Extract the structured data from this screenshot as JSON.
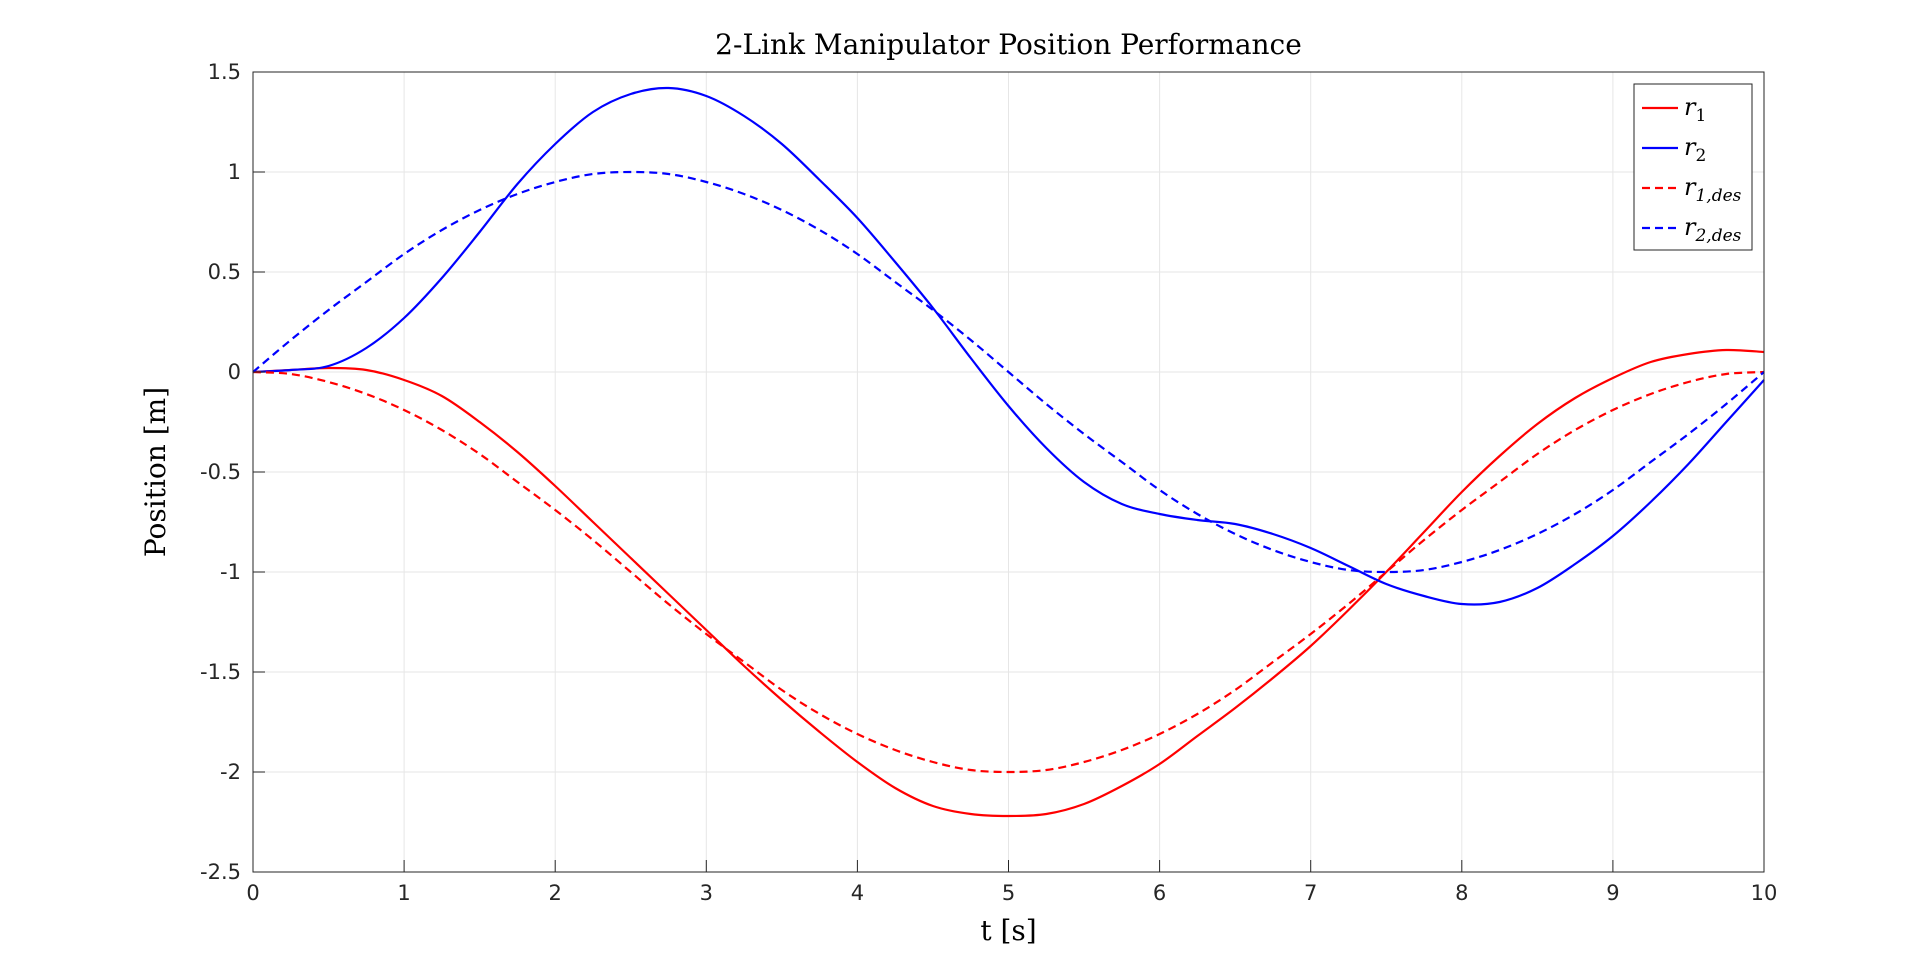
{
  "chart_data": {
    "type": "line",
    "title": "2-Link Manipulator Position Performance",
    "xlabel": "t [s]",
    "ylabel": "Position [m]",
    "xlim": [
      0,
      10
    ],
    "ylim": [
      -2.5,
      1.5
    ],
    "xticks": [
      0,
      1,
      2,
      3,
      4,
      5,
      6,
      7,
      8,
      9,
      10
    ],
    "yticks": [
      -2.5,
      -2,
      -1.5,
      -1,
      -0.5,
      0,
      0.5,
      1,
      1.5
    ],
    "xtick_labels": [
      "0",
      "1",
      "2",
      "3",
      "4",
      "5",
      "6",
      "7",
      "8",
      "9",
      "10"
    ],
    "ytick_labels": [
      "-2.5",
      "-2",
      "-1.5",
      "-1",
      "-0.5",
      "0",
      "0.5",
      "1",
      "1.5"
    ],
    "grid": true,
    "legend_position": "top-right",
    "series": [
      {
        "name": "r1",
        "legend_label": "r1",
        "color": "#ff0000",
        "style": "solid",
        "x": [
          0,
          0.25,
          0.5,
          0.75,
          1,
          1.25,
          1.5,
          1.75,
          2,
          2.25,
          2.5,
          2.75,
          3,
          3.25,
          3.5,
          3.75,
          4,
          4.25,
          4.5,
          4.75,
          5,
          5.25,
          5.5,
          5.75,
          6,
          6.25,
          6.5,
          6.75,
          7,
          7.25,
          7.5,
          7.75,
          8,
          8.25,
          8.5,
          8.75,
          9,
          9.25,
          9.5,
          9.75,
          10
        ],
        "y": [
          0,
          0.01,
          0.02,
          0.01,
          -0.04,
          -0.12,
          -0.25,
          -0.4,
          -0.57,
          -0.75,
          -0.93,
          -1.11,
          -1.29,
          -1.47,
          -1.64,
          -1.8,
          -1.95,
          -2.08,
          -2.17,
          -2.21,
          -2.22,
          -2.21,
          -2.16,
          -2.07,
          -1.96,
          -1.82,
          -1.68,
          -1.53,
          -1.37,
          -1.19,
          -1.0,
          -0.8,
          -0.6,
          -0.42,
          -0.26,
          -0.13,
          -0.03,
          0.05,
          0.09,
          0.11,
          0.1
        ]
      },
      {
        "name": "r2",
        "legend_label": "r2",
        "color": "#0000ff",
        "style": "solid",
        "x": [
          0,
          0.25,
          0.5,
          0.75,
          1,
          1.25,
          1.5,
          1.75,
          2,
          2.25,
          2.5,
          2.75,
          3,
          3.25,
          3.5,
          3.75,
          4,
          4.25,
          4.5,
          4.75,
          5,
          5.25,
          5.5,
          5.75,
          6,
          6.25,
          6.5,
          6.75,
          7,
          7.25,
          7.5,
          7.75,
          8,
          8.25,
          8.5,
          8.75,
          9,
          9.25,
          9.5,
          9.75,
          10
        ],
        "y": [
          0,
          0.01,
          0.03,
          0.12,
          0.27,
          0.47,
          0.7,
          0.94,
          1.14,
          1.3,
          1.39,
          1.42,
          1.38,
          1.28,
          1.14,
          0.96,
          0.77,
          0.55,
          0.32,
          0.07,
          -0.17,
          -0.38,
          -0.55,
          -0.66,
          -0.71,
          -0.74,
          -0.76,
          -0.81,
          -0.88,
          -0.97,
          -1.06,
          -1.12,
          -1.16,
          -1.15,
          -1.08,
          -0.96,
          -0.82,
          -0.65,
          -0.46,
          -0.25,
          -0.04
        ]
      },
      {
        "name": "r1,des",
        "legend_label": "r1,des",
        "color": "#ff0000",
        "style": "dashed",
        "x": [
          0,
          0.25,
          0.5,
          0.75,
          1,
          1.25,
          1.5,
          1.75,
          2,
          2.25,
          2.5,
          2.75,
          3,
          3.25,
          3.5,
          3.75,
          4,
          4.25,
          4.5,
          4.75,
          5,
          5.25,
          5.5,
          5.75,
          6,
          6.25,
          6.5,
          6.75,
          7,
          7.25,
          7.5,
          7.75,
          8,
          8.25,
          8.5,
          8.75,
          9,
          9.25,
          9.5,
          9.75,
          10
        ],
        "y": [
          0,
          -0.01,
          -0.05,
          -0.11,
          -0.19,
          -0.29,
          -0.41,
          -0.55,
          -0.69,
          -0.84,
          -1.0,
          -1.16,
          -1.31,
          -1.45,
          -1.59,
          -1.71,
          -1.81,
          -1.89,
          -1.95,
          -1.99,
          -2.0,
          -1.99,
          -1.95,
          -1.89,
          -1.81,
          -1.71,
          -1.59,
          -1.45,
          -1.31,
          -1.16,
          -1.0,
          -0.84,
          -0.69,
          -0.55,
          -0.41,
          -0.29,
          -0.19,
          -0.11,
          -0.05,
          -0.01,
          0
        ]
      },
      {
        "name": "r2,des",
        "legend_label": "r2,des",
        "color": "#0000ff",
        "style": "dashed",
        "x": [
          0,
          0.25,
          0.5,
          0.75,
          1,
          1.25,
          1.5,
          1.75,
          2,
          2.25,
          2.5,
          2.75,
          3,
          3.25,
          3.5,
          3.75,
          4,
          4.25,
          4.5,
          4.75,
          5,
          5.25,
          5.5,
          5.75,
          6,
          6.25,
          6.5,
          6.75,
          7,
          7.25,
          7.5,
          7.75,
          8,
          8.25,
          8.5,
          8.75,
          9,
          9.25,
          9.5,
          9.75,
          10
        ],
        "y": [
          0,
          0.16,
          0.31,
          0.45,
          0.59,
          0.71,
          0.81,
          0.89,
          0.95,
          0.99,
          1.0,
          0.99,
          0.95,
          0.89,
          0.81,
          0.71,
          0.59,
          0.45,
          0.31,
          0.16,
          0,
          -0.16,
          -0.31,
          -0.45,
          -0.59,
          -0.71,
          -0.81,
          -0.89,
          -0.95,
          -0.99,
          -1.0,
          -0.99,
          -0.95,
          -0.89,
          -0.81,
          -0.71,
          -0.59,
          -0.45,
          -0.31,
          -0.16,
          0
        ]
      }
    ]
  }
}
